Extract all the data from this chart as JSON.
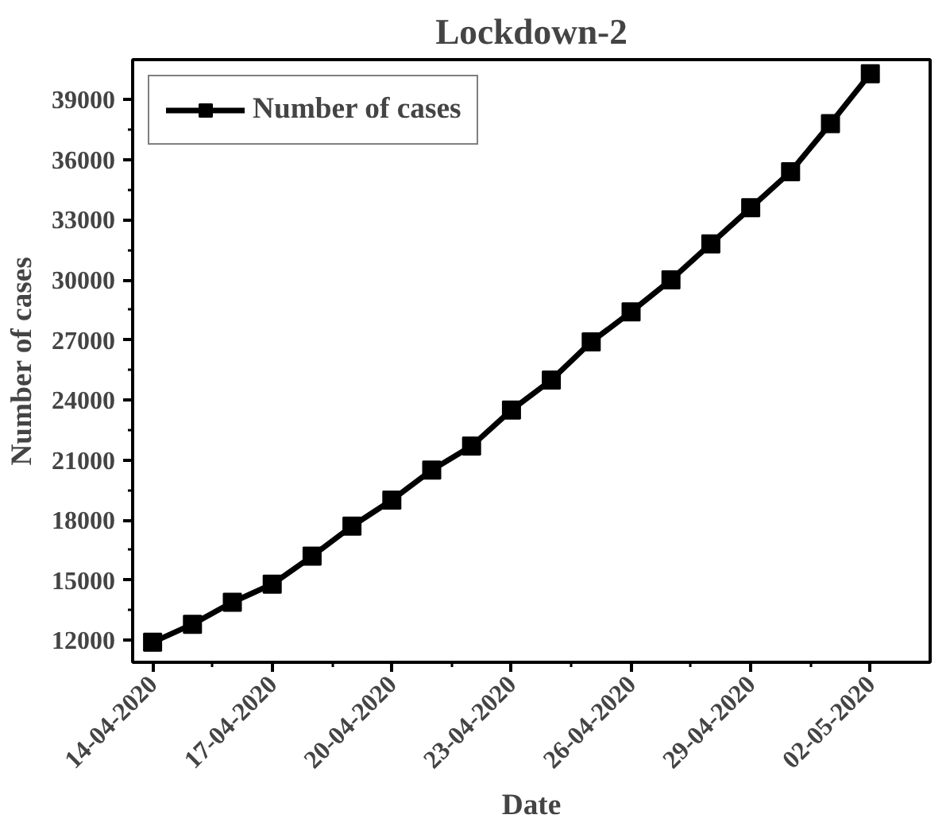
{
  "chart_data": {
    "type": "line",
    "title": "Lockdown-2",
    "xlabel": "Date",
    "ylabel": "Number of cases",
    "x": [
      "2020-04-14",
      "2020-04-15",
      "2020-04-16",
      "2020-04-17",
      "2020-04-18",
      "2020-04-19",
      "2020-04-20",
      "2020-04-21",
      "2020-04-22",
      "2020-04-23",
      "2020-04-24",
      "2020-04-25",
      "2020-04-26",
      "2020-04-27",
      "2020-04-28",
      "2020-04-29",
      "2020-04-30",
      "2020-05-01",
      "2020-05-02"
    ],
    "series": [
      {
        "name": "Number of cases",
        "color": "#000000",
        "values": [
          11900,
          12800,
          13900,
          14800,
          16200,
          17700,
          19000,
          20500,
          21700,
          23500,
          25000,
          26900,
          28400,
          30000,
          31800,
          33600,
          35400,
          37800,
          40300
        ]
      }
    ],
    "xlim": [
      "2020-04-13T12:00",
      "2020-05-03T12:00"
    ],
    "xticks": [
      {
        "value": "2020-04-14",
        "label": "14-04-2020"
      },
      {
        "value": "2020-04-17",
        "label": "17-04-2020"
      },
      {
        "value": "2020-04-20",
        "label": "20-04-2020"
      },
      {
        "value": "2020-04-23",
        "label": "23-04-2020"
      },
      {
        "value": "2020-04-26",
        "label": "26-04-2020"
      },
      {
        "value": "2020-04-29",
        "label": "29-04-2020"
      },
      {
        "value": "2020-05-02",
        "label": "02-05-2020"
      }
    ],
    "ylim": [
      10900,
      41000
    ],
    "yticks": [
      12000,
      15000,
      18000,
      21000,
      24000,
      27000,
      30000,
      33000,
      36000,
      39000
    ],
    "grid": false,
    "legend": "top left",
    "marker": "square",
    "line_style": "solid"
  }
}
